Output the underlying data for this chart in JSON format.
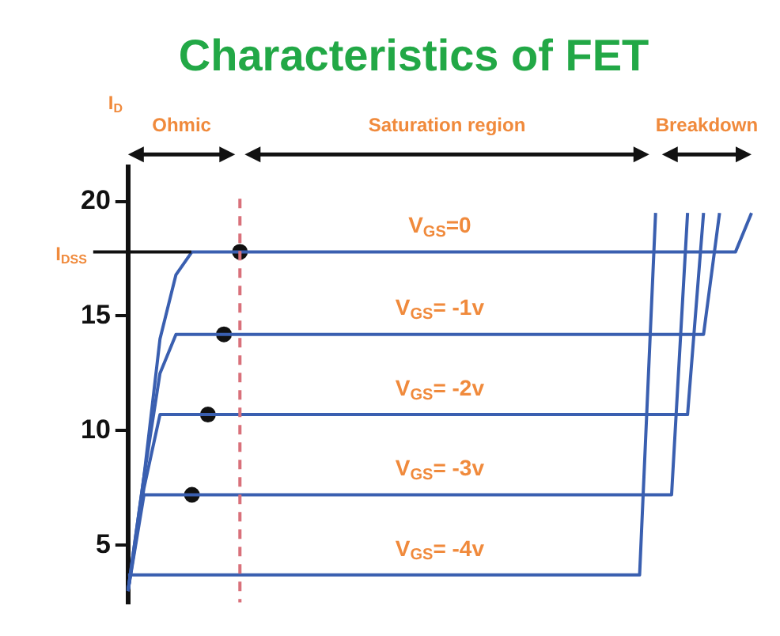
{
  "chart_data": {
    "type": "line",
    "title": "Characteristics of FET",
    "ylabel": "I$_{D}$",
    "categories": [
      null,
      null,
      null,
      null,
      null,
      null,
      null,
      null,
      null,
      null,
      null,
      null,
      null,
      null,
      null,
      null,
      null,
      null,
      null,
      null,
      null,
      null,
      null,
      null,
      null,
      null,
      null,
      null,
      null,
      null,
      null,
      null,
      null,
      null,
      null,
      null,
      null,
      null,
      null,
      null
    ],
    "ylim": [
      2.5,
      21.5
    ],
    "yticks": [
      5,
      10,
      15,
      20
    ],
    "tick_labels": "y",
    "marker": "none",
    "series": [
      {
        "name": "V$_{GS}$=0",
        "color": "#3a5fb0",
        "values": [
          3,
          8,
          14,
          16.8,
          17.8,
          17.8,
          17.8,
          17.8,
          17.8,
          17.8,
          17.8,
          17.8,
          17.8,
          17.8,
          17.8,
          17.8,
          17.8,
          17.8,
          17.8,
          17.8,
          17.8,
          17.8,
          17.8,
          17.8,
          17.8,
          17.8,
          17.8,
          17.8,
          17.8,
          17.8,
          17.8,
          17.8,
          17.8,
          17.8,
          17.8,
          17.8,
          17.8,
          17.8,
          17.8,
          19.5
        ]
      },
      {
        "name": "V$_{GS}$= -1v",
        "color": "#3a5fb0",
        "values": [
          3,
          8,
          12.5,
          14.2,
          14.2,
          14.2,
          14.2,
          14.2,
          14.2,
          14.2,
          14.2,
          14.2,
          14.2,
          14.2,
          14.2,
          14.2,
          14.2,
          14.2,
          14.2,
          14.2,
          14.2,
          14.2,
          14.2,
          14.2,
          14.2,
          14.2,
          14.2,
          14.2,
          14.2,
          14.2,
          14.2,
          14.2,
          14.2,
          14.2,
          14.2,
          14.2,
          14.2,
          19.5,
          null,
          null
        ]
      },
      {
        "name": "V$_{GS}$= -2v",
        "color": "#3a5fb0",
        "values": [
          3,
          7.5,
          10.7,
          10.7,
          10.7,
          10.7,
          10.7,
          10.7,
          10.7,
          10.7,
          10.7,
          10.7,
          10.7,
          10.7,
          10.7,
          10.7,
          10.7,
          10.7,
          10.7,
          10.7,
          10.7,
          10.7,
          10.7,
          10.7,
          10.7,
          10.7,
          10.7,
          10.7,
          10.7,
          10.7,
          10.7,
          10.7,
          10.7,
          10.7,
          10.7,
          10.7,
          19.5,
          null,
          null,
          null
        ]
      },
      {
        "name": "V$_{GS}$= -3v",
        "color": "#3a5fb0",
        "values": [
          3,
          7.2,
          7.2,
          7.2,
          7.2,
          7.2,
          7.2,
          7.2,
          7.2,
          7.2,
          7.2,
          7.2,
          7.2,
          7.2,
          7.2,
          7.2,
          7.2,
          7.2,
          7.2,
          7.2,
          7.2,
          7.2,
          7.2,
          7.2,
          7.2,
          7.2,
          7.2,
          7.2,
          7.2,
          7.2,
          7.2,
          7.2,
          7.2,
          7.2,
          7.2,
          19.5,
          null,
          null,
          null,
          null
        ]
      },
      {
        "name": "V$_{GS}$= -4v",
        "color": "#3a5fb0",
        "values": [
          3.7,
          3.7,
          3.7,
          3.7,
          3.7,
          3.7,
          3.7,
          3.7,
          3.7,
          3.7,
          3.7,
          3.7,
          3.7,
          3.7,
          3.7,
          3.7,
          3.7,
          3.7,
          3.7,
          3.7,
          3.7,
          3.7,
          3.7,
          3.7,
          3.7,
          3.7,
          3.7,
          3.7,
          3.7,
          3.7,
          3.7,
          3.7,
          3.7,
          19.5,
          null,
          null,
          null,
          null,
          null,
          null
        ]
      },
      {
        "type": "scatter",
        "marker": "circle",
        "color": "#111111",
        "values": [
          null,
          null,
          null,
          null,
          7.2,
          10.7,
          14.2,
          17.8,
          null,
          null,
          null,
          null,
          null,
          null,
          null,
          null,
          null,
          null,
          null,
          null,
          null,
          null,
          null,
          null,
          null,
          null,
          null,
          null,
          null,
          null,
          null,
          null,
          null,
          null,
          null,
          null,
          null,
          null,
          null,
          null
        ]
      }
    ],
    "ref_lines": [
      {
        "axis": "y",
        "value": 17.8,
        "label": "I$_{DSS}$",
        "color": "#111111"
      }
    ],
    "annotations": [
      "Ohmic",
      "Saturation region",
      "Breakdown"
    ]
  }
}
